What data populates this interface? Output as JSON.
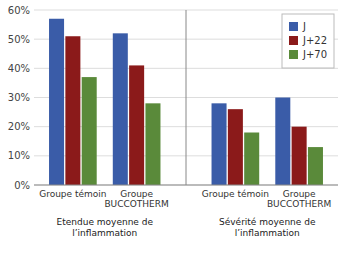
{
  "chart_data": {
    "type": "bar",
    "categories": [
      "Groupe témoin",
      "Groupe\nBUCCOTHERM",
      "Groupe témoin",
      "Groupe\nBUCCOTHERM"
    ],
    "series": [
      {
        "name": "J",
        "color": "#3a5ca8",
        "values": [
          57,
          52,
          28,
          30
        ]
      },
      {
        "name": "J+22",
        "color": "#8b1a1a",
        "values": [
          51,
          41,
          26,
          20
        ]
      },
      {
        "name": "J+70",
        "color": "#5a8a3a",
        "values": [
          37,
          28,
          18,
          13
        ]
      }
    ],
    "annotations": [
      "Etendue moyenne de\nl’inflammation",
      "Sévérité moyenne de\nl’inflammation"
    ],
    "ylim": [
      0,
      60
    ],
    "yticks": [
      {
        "value": 0,
        "label": "0%"
      },
      {
        "value": 10,
        "label": "10%"
      },
      {
        "value": 20,
        "label": "20%"
      },
      {
        "value": 30,
        "label": "30%"
      },
      {
        "value": 40,
        "label": "40%"
      },
      {
        "value": 50,
        "label": "50%"
      },
      {
        "value": 60,
        "label": "60%"
      }
    ],
    "grid": true,
    "legend": "right"
  }
}
